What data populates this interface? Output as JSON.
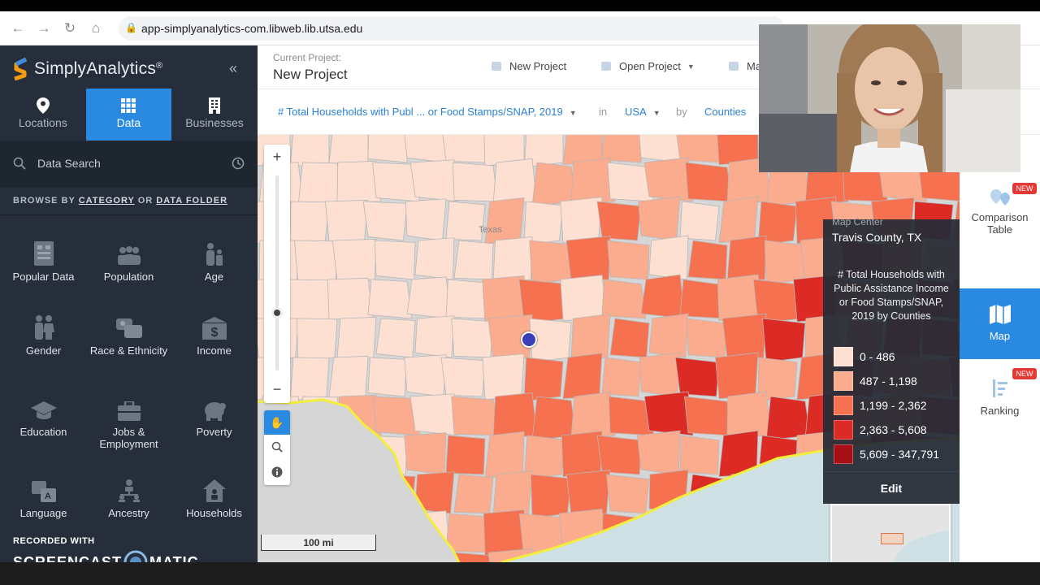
{
  "browser": {
    "url": "app-simplyanalytics-com.libweb.lib.utsa.edu"
  },
  "sidebar": {
    "brand": "SimplyAnalytics",
    "brand_mark": "®",
    "tabs": [
      {
        "label": "Locations",
        "icon": "location-pin-icon",
        "active": false
      },
      {
        "label": "Data",
        "icon": "grid-icon",
        "active": true
      },
      {
        "label": "Businesses",
        "icon": "building-icon",
        "active": false
      }
    ],
    "search_placeholder": "Data Search",
    "browse_prefix": "BROWSE BY",
    "browse_category": "CATEGORY",
    "browse_or": "OR",
    "browse_folder": "DATA FOLDER",
    "categories": [
      {
        "label": "Popular Data",
        "icon": "popular-data-icon"
      },
      {
        "label": "Population",
        "icon": "population-icon"
      },
      {
        "label": "Age",
        "icon": "age-icon"
      },
      {
        "label": "Gender",
        "icon": "gender-icon"
      },
      {
        "label": "Race & Ethnicity",
        "icon": "race-ethnicity-icon"
      },
      {
        "label": "Income",
        "icon": "income-icon"
      },
      {
        "label": "Education",
        "icon": "education-icon"
      },
      {
        "label": "Jobs & Employment",
        "icon": "jobs-employment-icon"
      },
      {
        "label": "Poverty",
        "icon": "poverty-icon"
      },
      {
        "label": "Language",
        "icon": "language-icon"
      },
      {
        "label": "Ancestry",
        "icon": "ancestry-icon"
      },
      {
        "label": "Households",
        "icon": "households-icon"
      }
    ]
  },
  "watermark": {
    "line1": "RECORDED WITH",
    "line2a": "SCREENCAST",
    "line2b": "MATIC"
  },
  "project": {
    "label": "Current Project:",
    "name": "New Project",
    "new_button": "New Project",
    "open_button": "Open Project",
    "more_button": "Ma"
  },
  "filter": {
    "variable": "# Total Households with Publ ... or Food Stamps/SNAP, 2019",
    "in_word": "in",
    "location": "USA",
    "by_word": "by",
    "unit": "Counties"
  },
  "map": {
    "state_label": "Texas",
    "scale_label": "100 mi",
    "accent_colors": {
      "coast": "#f2ee3c",
      "water": "#cfe0e4",
      "land_outside": "#d6d6d6"
    }
  },
  "legend": {
    "center_label": "Map Center",
    "center_value": "Travis County, TX",
    "title": "# Total Households with Public Assistance Income or Food Stamps/SNAP, 2019 by Counties",
    "ranges": [
      {
        "label": "0 - 486",
        "color": "#fde0d2"
      },
      {
        "label": "487 - 1,198",
        "color": "#fbab8e"
      },
      {
        "label": "1,199 - 2,362",
        "color": "#f6714f"
      },
      {
        "label": "2,363 - 5,608",
        "color": "#dc2a24"
      },
      {
        "label": "5,609 - 347,791",
        "color": "#a50f15"
      }
    ],
    "edit": "Edit"
  },
  "right_panel": [
    {
      "label": "Comparison Table",
      "badge": "NEW",
      "active": false
    },
    {
      "label": "Map",
      "badge": "",
      "active": true
    },
    {
      "label": "Ranking",
      "badge": "NEW",
      "active": false
    }
  ]
}
